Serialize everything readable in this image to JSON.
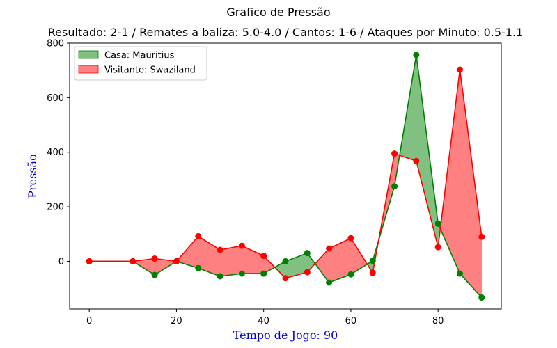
{
  "figure": {
    "title": "Grafico de Pressão",
    "subtitle": "Resultado: 2-1 / Remates a baliza: 5.0-4.0 / Cantos: 1-6 / Ataques por Minuto: 0.5-1.1"
  },
  "chart_data": {
    "type": "line",
    "xlabel": "Tempo de Jogo: 90",
    "ylabel": "Pressão",
    "label_color": "#0000cc",
    "xlim": [
      -4.5,
      94.5
    ],
    "ylim": [
      -175,
      800
    ],
    "xticks": [
      0,
      20,
      40,
      60,
      80
    ],
    "yticks": [
      0,
      200,
      400,
      600,
      800
    ],
    "grid": false,
    "legend_position": "top-left",
    "x": [
      0,
      10,
      15,
      20,
      25,
      30,
      35,
      40,
      45,
      50,
      55,
      60,
      65,
      70,
      75,
      80,
      85,
      90
    ],
    "series": [
      {
        "name": "Casa: Mauritius",
        "color": "#008000",
        "fill": "#80c080",
        "values": [
          0,
          0,
          -50,
          0,
          -25,
          -55,
          -45,
          -45,
          0,
          30,
          -78,
          -48,
          2,
          275,
          757,
          138,
          -45,
          -133
        ]
      },
      {
        "name": "Visitante: Swaziland",
        "color": "#ff0000",
        "fill": "#ff8080",
        "values": [
          0,
          0,
          10,
          0,
          92,
          42,
          57,
          20,
          -62,
          -40,
          47,
          85,
          -42,
          395,
          368,
          52,
          703,
          90
        ]
      }
    ]
  }
}
